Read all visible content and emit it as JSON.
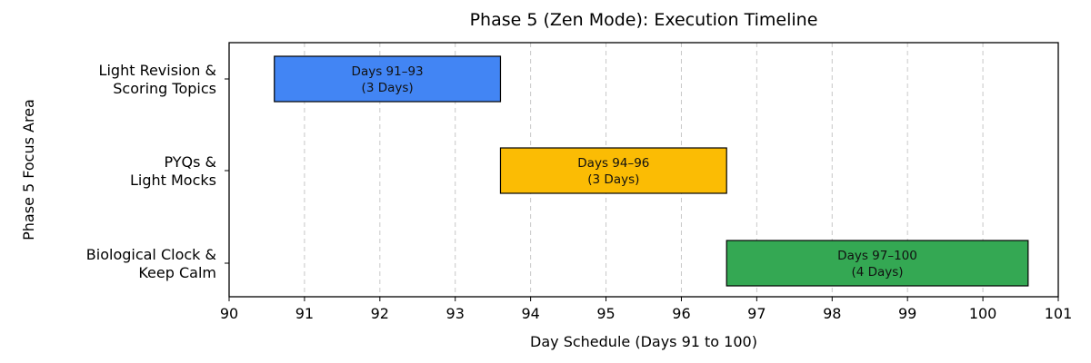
{
  "chart_data": {
    "type": "bar",
    "orientation": "horizontal",
    "title": "Phase 5 (Zen Mode): Execution Timeline",
    "xlabel": "Day Schedule (Days 91 to 100)",
    "ylabel": "Phase 5 Focus Area",
    "xlim": [
      90,
      101
    ],
    "xticks": [
      90,
      91,
      92,
      93,
      94,
      95,
      96,
      97,
      98,
      99,
      100,
      101
    ],
    "grid": "vertical-dashed",
    "series": [
      {
        "category_lines": [
          "Light Revision &",
          "Scoring Topics"
        ],
        "start": 90.6,
        "end": 93.6,
        "label_lines": [
          "Days 91–93",
          "(3 Days)"
        ],
        "color": "#4285F4"
      },
      {
        "category_lines": [
          "PYQs &",
          "Light Mocks"
        ],
        "start": 93.6,
        "end": 96.6,
        "label_lines": [
          "Days 94–96",
          "(3 Days)"
        ],
        "color": "#FBBC04"
      },
      {
        "category_lines": [
          "Biological Clock &",
          "Keep Calm"
        ],
        "start": 96.6,
        "end": 100.6,
        "label_lines": [
          "Days 97–100",
          "(4 Days)"
        ],
        "color": "#34A853"
      }
    ]
  }
}
